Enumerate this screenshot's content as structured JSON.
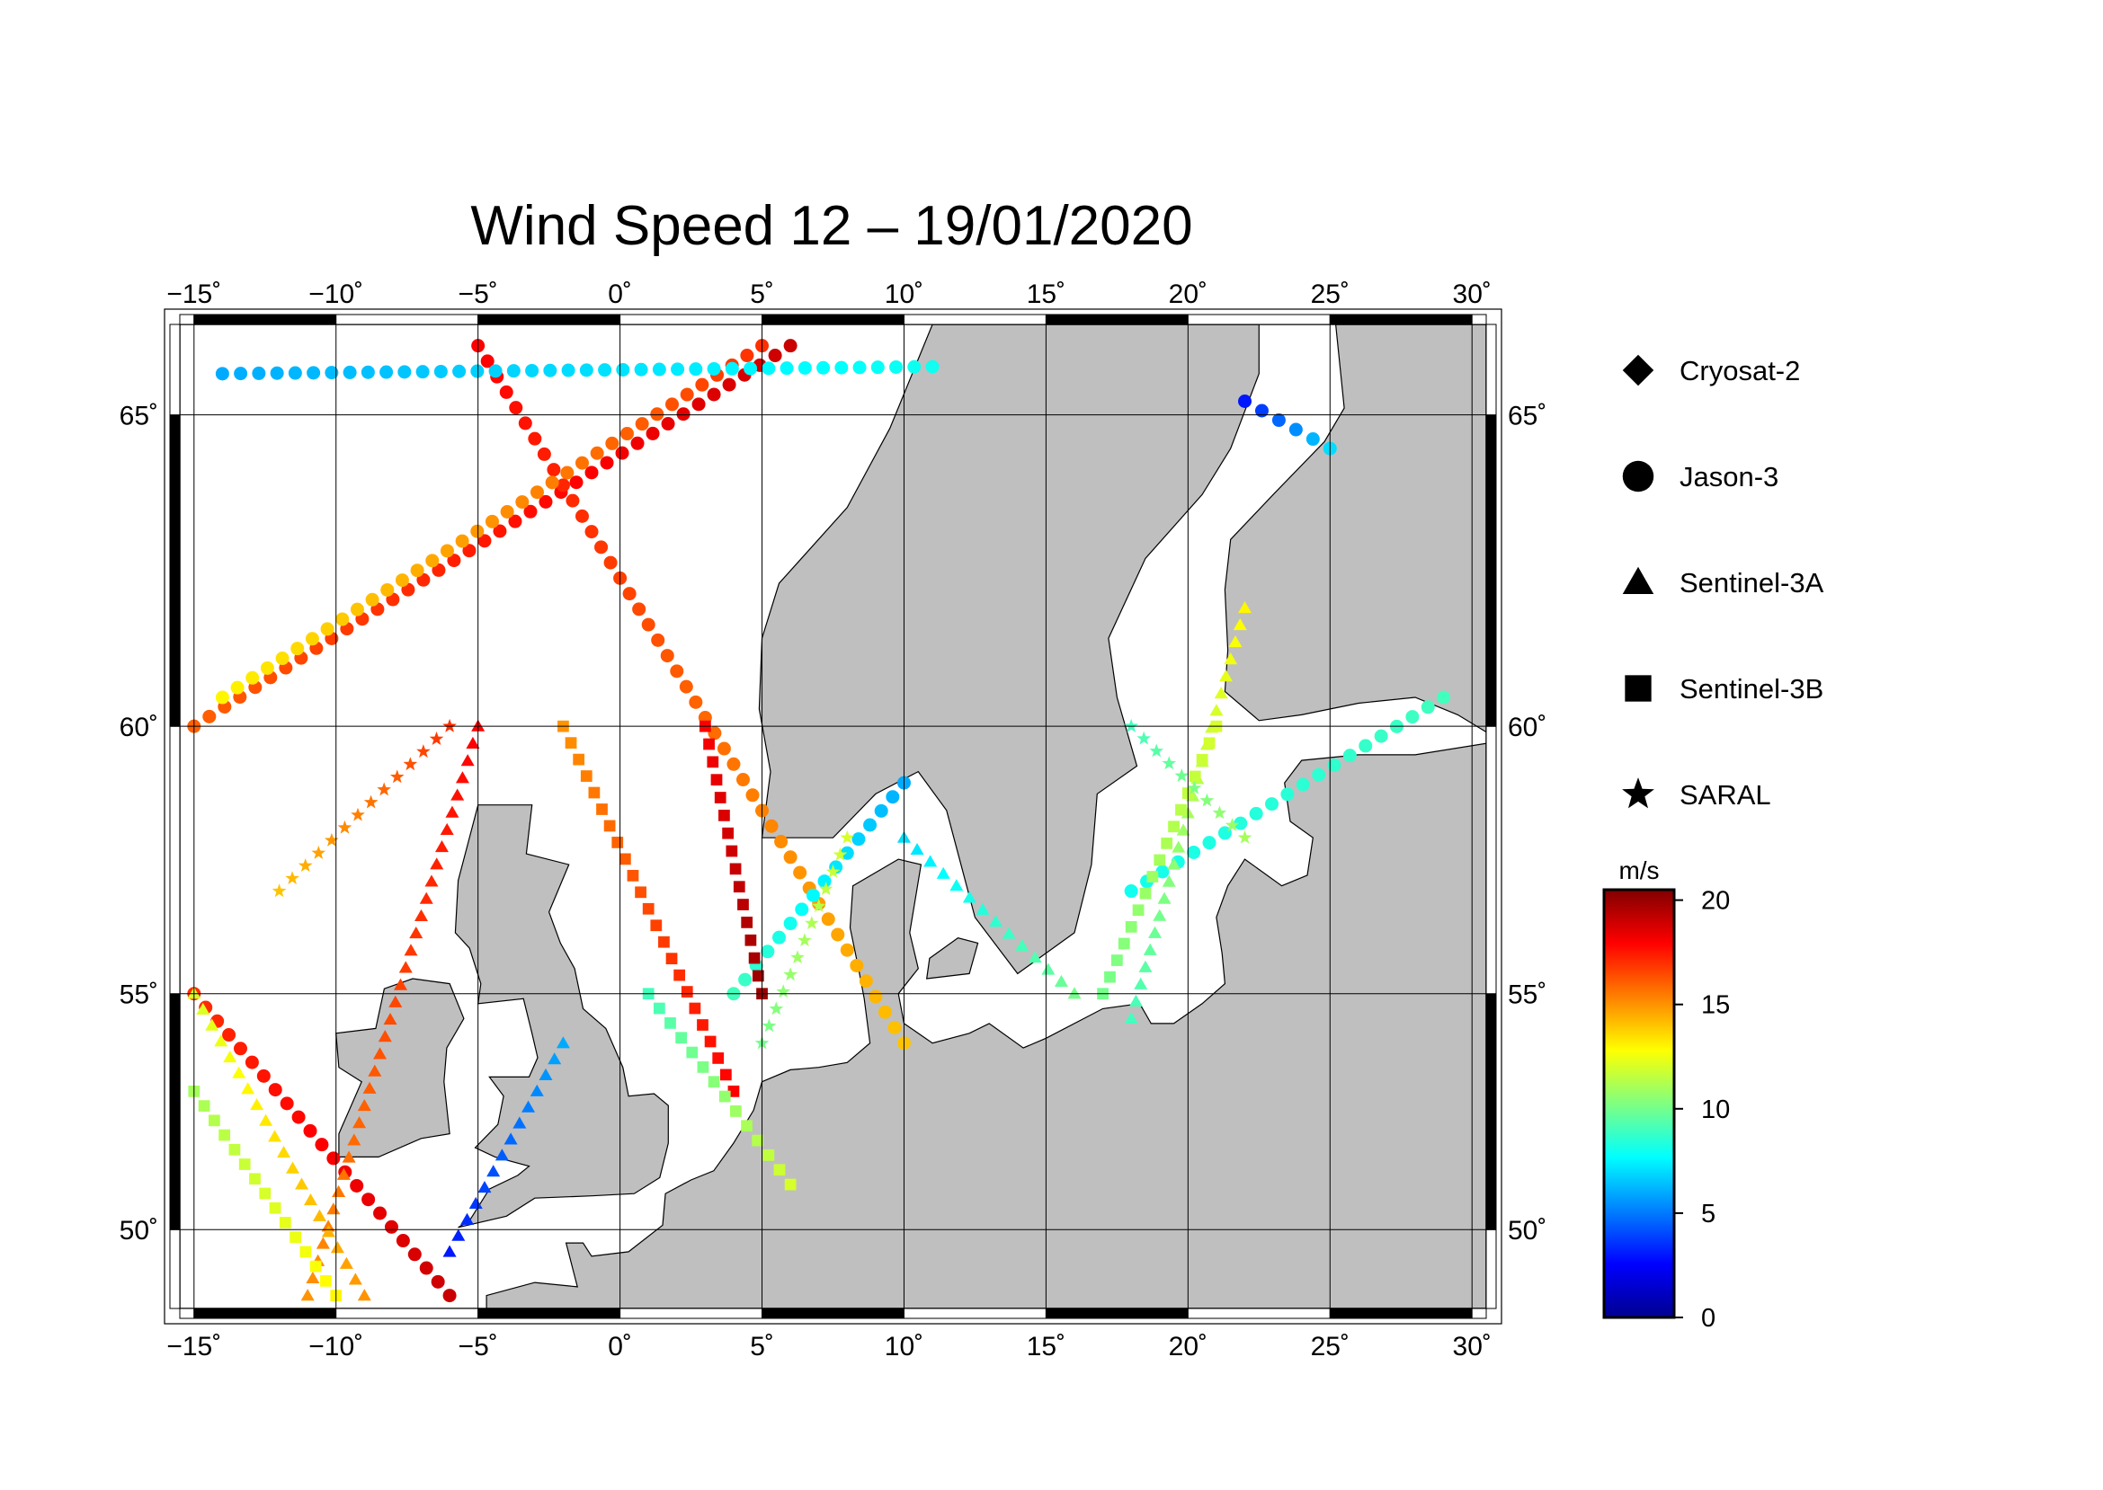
{
  "title": "Wind Speed 12 – 19/01/2020",
  "map": {
    "projection": "mercator",
    "lon_range": [
      -15.5,
      30.5
    ],
    "lat_range": [
      48.2,
      66.3
    ],
    "lon_ticks": [
      {
        "value": -15,
        "label": "−15˚"
      },
      {
        "value": -10,
        "label": "−10˚"
      },
      {
        "value": -5,
        "label": "−5˚"
      },
      {
        "value": 0,
        "label": "0˚"
      },
      {
        "value": 5,
        "label": "5˚"
      },
      {
        "value": 10,
        "label": "10˚"
      },
      {
        "value": 15,
        "label": "15˚"
      },
      {
        "value": 20,
        "label": "20˚"
      },
      {
        "value": 25,
        "label": "25˚"
      },
      {
        "value": 30,
        "label": "30˚"
      }
    ],
    "lat_ticks": [
      {
        "value": 50,
        "label": "50˚"
      },
      {
        "value": 55,
        "label": "55˚"
      },
      {
        "value": 60,
        "label": "60˚"
      },
      {
        "value": 65,
        "label": "65˚"
      }
    ],
    "grid": true,
    "land_color": "#bfbfbf",
    "sea_color": "#ffffff"
  },
  "legend": {
    "placement": "right",
    "items": [
      {
        "label": "Cryosat-2",
        "symbol": "diamond"
      },
      {
        "label": "Jason-3",
        "symbol": "circle"
      },
      {
        "label": "Sentinel-3A",
        "symbol": "triangle"
      },
      {
        "label": "Sentinel-3B",
        "symbol": "square"
      },
      {
        "label": "SARAL",
        "symbol": "star"
      }
    ]
  },
  "colorbar": {
    "unit": "m/s",
    "range": [
      0,
      20.5
    ],
    "ticks": [
      {
        "value": 0,
        "label": "0"
      },
      {
        "value": 5,
        "label": "5"
      },
      {
        "value": 10,
        "label": "10"
      },
      {
        "value": 15,
        "label": "15"
      },
      {
        "value": 20,
        "label": "20"
      }
    ],
    "colormap": [
      "#00008f",
      "#0000ff",
      "#0080ff",
      "#00ffff",
      "#80ff80",
      "#ffff00",
      "#ff8000",
      "#ff0000",
      "#800000"
    ]
  },
  "chart_data": {
    "type": "scatter",
    "title": "Wind Speed 12 – 19/01/2020",
    "x_label": "",
    "y_label": "",
    "value_unit": "m/s",
    "tracks": [
      {
        "mission": "Jason-3",
        "lon": [
          -15,
          6
        ],
        "lat": [
          60,
          66
        ],
        "speed": [
          16,
          19
        ]
      },
      {
        "mission": "Jason-3",
        "lon": [
          -15,
          -6
        ],
        "lat": [
          55,
          48.5
        ],
        "speed": [
          17,
          19
        ]
      },
      {
        "mission": "Jason-3",
        "lon": [
          -5,
          10
        ],
        "lat": [
          66,
          54
        ],
        "speed": [
          18,
          14
        ]
      },
      {
        "mission": "Jason-3",
        "lon": [
          -14,
          5
        ],
        "lat": [
          60.5,
          66
        ],
        "speed": [
          13,
          17
        ]
      },
      {
        "mission": "Jason-3",
        "lon": [
          4,
          10
        ],
        "lat": [
          55,
          59
        ],
        "speed": [
          9,
          6
        ]
      },
      {
        "mission": "Jason-3",
        "lon": [
          -14,
          11
        ],
        "lat": [
          65.6,
          65.7
        ],
        "speed": [
          6,
          8
        ]
      },
      {
        "mission": "Jason-3",
        "lon": [
          22,
          25
        ],
        "lat": [
          65.2,
          64.5
        ],
        "speed": [
          3,
          7
        ]
      },
      {
        "mission": "Jason-3",
        "lon": [
          18,
          29
        ],
        "lat": [
          57,
          60.5
        ],
        "speed": [
          8,
          9
        ]
      },
      {
        "mission": "Sentinel-3A",
        "lon": [
          -11,
          -5
        ],
        "lat": [
          48.5,
          60
        ],
        "speed": [
          15,
          18
        ]
      },
      {
        "mission": "Sentinel-3A",
        "lon": [
          -15,
          -9
        ],
        "lat": [
          55,
          48.5
        ],
        "speed": [
          12,
          15
        ]
      },
      {
        "mission": "Sentinel-3A",
        "lon": [
          -6,
          -2
        ],
        "lat": [
          49.5,
          54
        ],
        "speed": [
          3,
          6
        ]
      },
      {
        "mission": "Sentinel-3A",
        "lon": [
          10,
          16
        ],
        "lat": [
          58,
          55
        ],
        "speed": [
          7,
          10
        ]
      },
      {
        "mission": "Sentinel-3A",
        "lon": [
          18,
          22
        ],
        "lat": [
          54.5,
          62
        ],
        "speed": [
          9,
          13
        ]
      },
      {
        "mission": "Sentinel-3B",
        "lon": [
          -15,
          -10
        ],
        "lat": [
          53,
          48.5
        ],
        "speed": [
          11,
          13
        ]
      },
      {
        "mission": "Sentinel-3B",
        "lon": [
          -2,
          4
        ],
        "lat": [
          60,
          53
        ],
        "speed": [
          15,
          18
        ]
      },
      {
        "mission": "Sentinel-3B",
        "lon": [
          3,
          5
        ],
        "lat": [
          60,
          55
        ],
        "speed": [
          18,
          20
        ]
      },
      {
        "mission": "Sentinel-3B",
        "lon": [
          1,
          6
        ],
        "lat": [
          55,
          51
        ],
        "speed": [
          9,
          12
        ]
      },
      {
        "mission": "Sentinel-3B",
        "lon": [
          17,
          21
        ],
        "lat": [
          55,
          60
        ],
        "speed": [
          10,
          12
        ]
      },
      {
        "mission": "SARAL",
        "lon": [
          -12,
          -6
        ],
        "lat": [
          57,
          60
        ],
        "speed": [
          14,
          17
        ]
      },
      {
        "mission": "SARAL",
        "lon": [
          5,
          8
        ],
        "lat": [
          54,
          58
        ],
        "speed": [
          10,
          12
        ]
      },
      {
        "mission": "SARAL",
        "lon": [
          18,
          22
        ],
        "lat": [
          60,
          58
        ],
        "speed": [
          9,
          11
        ]
      }
    ]
  }
}
